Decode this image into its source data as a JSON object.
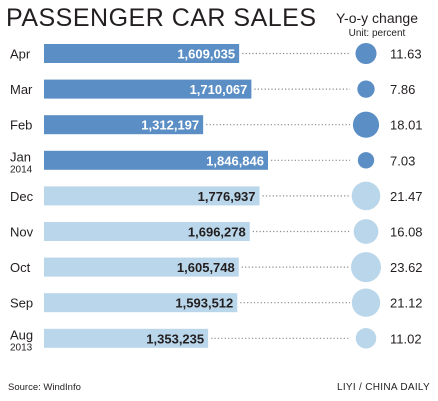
{
  "chart_data": {
    "type": "bar",
    "title": "PASSENGER CAR SALES",
    "categories": [
      "Apr",
      "Mar",
      "Feb",
      "Jan",
      "Dec",
      "Nov",
      "Oct",
      "Sep",
      "Aug"
    ],
    "year_labels": [
      "",
      "",
      "",
      "2014",
      "",
      "",
      "",
      "",
      "2013"
    ],
    "series": [
      {
        "values": [
          1609035,
          1710067,
          1312197,
          1846846,
          1776937,
          1696278,
          1605748,
          1593512,
          1353235
        ],
        "value_labels": [
          "1,609,035",
          "1,710,067",
          "1,312,197",
          "1,846,846",
          "1,776,937",
          "1,696,278",
          "1,605,748",
          "1,593,512",
          "1,353,235"
        ]
      },
      {
        "name": "Y-o-y change",
        "values": [
          11.63,
          7.86,
          18.01,
          7.03,
          21.47,
          16.08,
          23.62,
          21.12,
          11.02
        ],
        "value_labels": [
          "11.63",
          "7.86",
          "18.01",
          "7.03",
          "21.47",
          "16.08",
          "23.62",
          "21.12",
          "11.02"
        ]
      }
    ],
    "xlim": [
      0,
      1846846
    ],
    "yoy_title": "Y-o-y change",
    "yoy_unit": "Unit: percent",
    "colors": {
      "2014": "#5b8ec4",
      "2013": "#b9d6ea",
      "dots": "#8a8a8a"
    },
    "highlight_count": 4
  },
  "footer": {
    "source": "Source: WindInfo",
    "credit": "LIYI / CHINA DAILY"
  }
}
